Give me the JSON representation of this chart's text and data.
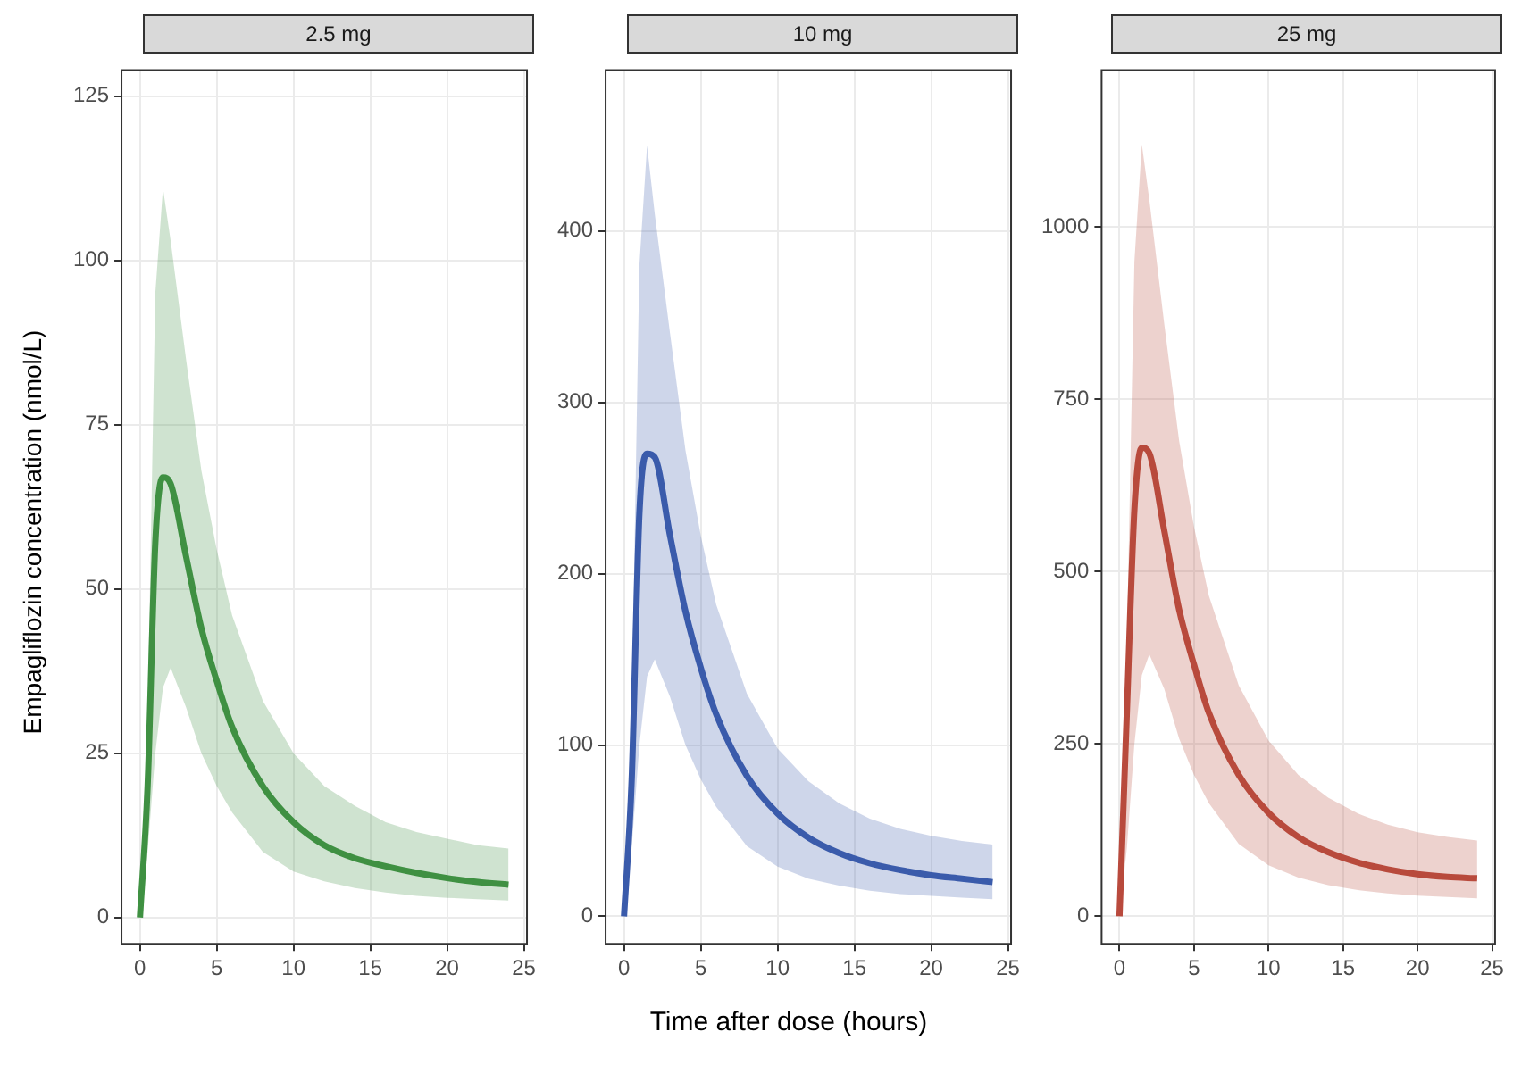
{
  "chart_data": [
    {
      "type": "line",
      "title": "2.5 mg",
      "ylabel": "Empagliflozin concentration (nmol/L)",
      "x": [
        0,
        0.5,
        1,
        1.5,
        2,
        3,
        4,
        5,
        6,
        8,
        10,
        12,
        14,
        16,
        18,
        20,
        22,
        24
      ],
      "xlim": [
        -1.2,
        25.2
      ],
      "xticks": [
        0,
        5,
        10,
        15,
        20,
        25
      ],
      "ylim": [
        -4,
        129
      ],
      "yticks": [
        0,
        25,
        50,
        75,
        100,
        125
      ],
      "grid": true,
      "legend": false,
      "marker": "none",
      "line_style": "solid",
      "series": [
        {
          "color": "#3f9142",
          "values": [
            0,
            20,
            57,
            67,
            66,
            55,
            44,
            36,
            29,
            20,
            14.5,
            11,
            9,
            7.8,
            6.8,
            6,
            5.4,
            5
          ],
          "lower": [
            0,
            10,
            25,
            35,
            38,
            32,
            25,
            20,
            16,
            10,
            7,
            5.5,
            4.5,
            3.8,
            3.3,
            3,
            2.8,
            2.6
          ],
          "upper": [
            0,
            30,
            95,
            111,
            103,
            85,
            68,
            56,
            46,
            33,
            25,
            20,
            17,
            14.5,
            13,
            12,
            11,
            10.5
          ]
        }
      ]
    },
    {
      "type": "line",
      "title": "10 mg",
      "xlabel": "Time after dose (hours)",
      "x": [
        0,
        0.5,
        1,
        1.5,
        2,
        3,
        4,
        5,
        6,
        8,
        10,
        12,
        14,
        16,
        18,
        20,
        22,
        24
      ],
      "xlim": [
        -1.2,
        25.2
      ],
      "xticks": [
        0,
        5,
        10,
        15,
        20,
        25
      ],
      "ylim": [
        -16,
        494
      ],
      "yticks": [
        0,
        100,
        200,
        300,
        400
      ],
      "grid": true,
      "legend": false,
      "marker": "none",
      "line_style": "solid",
      "series": [
        {
          "color": "#3a5bab",
          "values": [
            0,
            80,
            235,
            270,
            268,
            222,
            178,
            145,
            118,
            82,
            60,
            46,
            37,
            31,
            27,
            24,
            22,
            20
          ],
          "lower": [
            0,
            40,
            100,
            140,
            150,
            128,
            100,
            80,
            64,
            41,
            29,
            22,
            18,
            15,
            13,
            12,
            11,
            10
          ],
          "upper": [
            0,
            120,
            380,
            450,
            410,
            340,
            272,
            222,
            182,
            130,
            98,
            79,
            66,
            57,
            51,
            47,
            44,
            42
          ]
        }
      ]
    },
    {
      "type": "line",
      "title": "25 mg",
      "x": [
        0,
        0.5,
        1,
        1.5,
        2,
        3,
        4,
        5,
        6,
        8,
        10,
        12,
        14,
        16,
        18,
        20,
        22,
        24
      ],
      "xlim": [
        -1.2,
        25.2
      ],
      "xticks": [
        0,
        5,
        10,
        15,
        20,
        25
      ],
      "ylim": [
        -40,
        1228
      ],
      "yticks": [
        0,
        250,
        500,
        750,
        1000
      ],
      "grid": true,
      "legend": false,
      "marker": "none",
      "line_style": "solid",
      "series": [
        {
          "color": "#b94a3d",
          "values": [
            0,
            300,
            590,
            680,
            672,
            560,
            445,
            365,
            295,
            205,
            150,
            115,
            93,
            78,
            68,
            61,
            57,
            55
          ],
          "lower": [
            0,
            100,
            250,
            350,
            380,
            330,
            258,
            205,
            164,
            105,
            74,
            56,
            45,
            38,
            33,
            30,
            28,
            26
          ],
          "upper": [
            0,
            400,
            950,
            1120,
            1040,
            860,
            690,
            565,
            465,
            335,
            255,
            205,
            172,
            149,
            133,
            122,
            115,
            110
          ]
        }
      ]
    }
  ]
}
